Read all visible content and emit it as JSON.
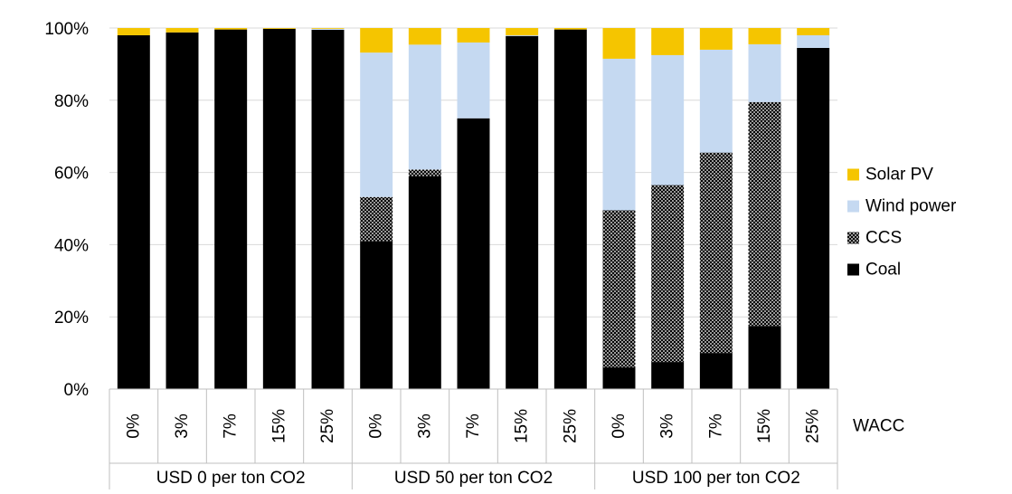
{
  "chart_data": {
    "type": "bar",
    "stacked": true,
    "percent_stacked": true,
    "ylim": [
      0,
      100
    ],
    "yticks": [
      "0%",
      "20%",
      "40%",
      "60%",
      "80%",
      "100%"
    ],
    "ytick_values": [
      0,
      20,
      40,
      60,
      80,
      100
    ],
    "grid": true,
    "legend_position": "right",
    "xlabel": "WACC",
    "groups": [
      {
        "label": "USD 0 per ton CO2",
        "categories": [
          "0%",
          "3%",
          "7%",
          "15%",
          "25%"
        ]
      },
      {
        "label": "USD 50 per ton CO2",
        "categories": [
          "0%",
          "3%",
          "7%",
          "15%",
          "25%"
        ]
      },
      {
        "label": "USD 100 per ton CO2",
        "categories": [
          "0%",
          "3%",
          "7%",
          "15%",
          "25%"
        ]
      }
    ],
    "series": [
      {
        "name": "Coal",
        "color": "#000000",
        "pattern": "solid",
        "values": [
          98,
          98.8,
          99.6,
          99.8,
          99.5,
          41,
          59,
          75,
          97.8,
          99.6,
          6,
          7.5,
          10,
          17.5,
          94.5
        ]
      },
      {
        "name": "CCS",
        "color": "#000000",
        "pattern": "crosshatch",
        "values": [
          0,
          0,
          0,
          0,
          0,
          12.2,
          1.8,
          0,
          0,
          0,
          43.5,
          49,
          55.5,
          62,
          0
        ]
      },
      {
        "name": "Wind power",
        "color": "#c5d9f1",
        "pattern": "solid",
        "values": [
          0,
          0,
          0,
          0,
          0.3,
          40,
          34.6,
          21,
          0.2,
          0,
          42,
          36,
          28.5,
          16,
          3.5
        ]
      },
      {
        "name": "Solar PV",
        "color": "#f5c500",
        "pattern": "solid",
        "values": [
          2,
          1.2,
          0.4,
          0.2,
          0.2,
          6.8,
          4.6,
          4,
          2,
          0.4,
          8.5,
          7.5,
          6,
          4.5,
          2
        ]
      }
    ],
    "legend_order": [
      "Solar PV",
      "Wind power",
      "CCS",
      "Coal"
    ]
  }
}
